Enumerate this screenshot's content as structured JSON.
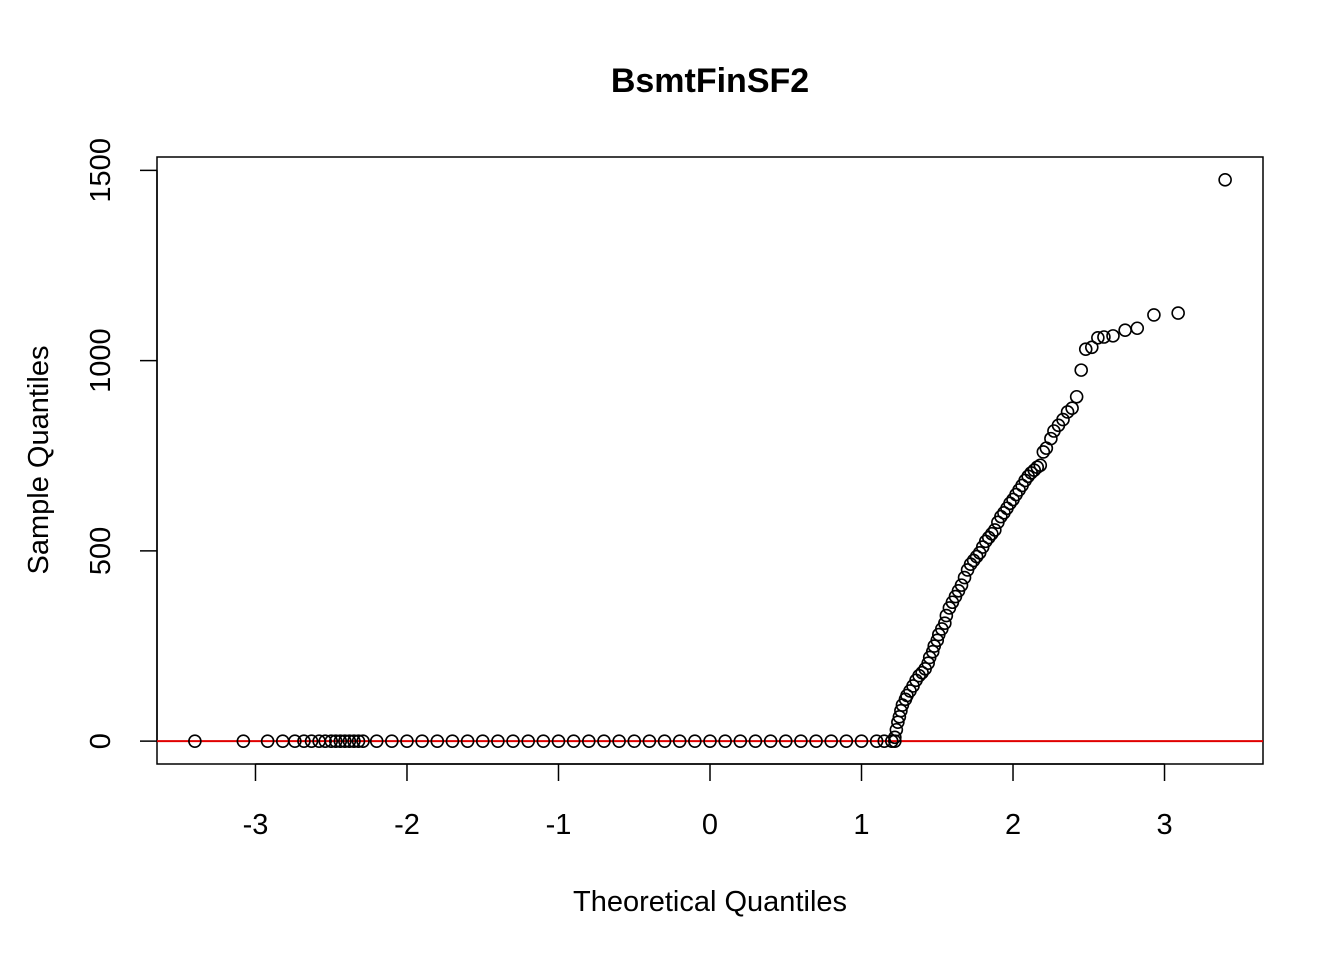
{
  "chart_data": {
    "type": "scatter",
    "title": "BsmtFinSF2",
    "xlabel": "Theoretical Quantiles",
    "ylabel": "Sample Quantiles",
    "xlim": [
      -3.65,
      3.65
    ],
    "ylim": [
      -60,
      1535
    ],
    "x_ticks": [
      -3,
      -2,
      -1,
      0,
      1,
      2,
      3
    ],
    "x_tick_labels": [
      "-3",
      "-2",
      "-1",
      "0",
      "1",
      "2",
      "3"
    ],
    "y_ticks": [
      0,
      500,
      1000,
      1500
    ],
    "y_tick_labels": [
      "0",
      "500",
      "1000",
      "1500"
    ],
    "grid": false,
    "reference_line": {
      "type": "hline",
      "y": 0,
      "color": "#e00000"
    },
    "point_color": "#000000",
    "series": [
      {
        "points": [
          [
            -3.4,
            0
          ],
          [
            -3.08,
            0
          ],
          [
            -2.92,
            0
          ],
          [
            -2.82,
            0
          ],
          [
            -2.74,
            0
          ],
          [
            -2.68,
            0
          ],
          [
            -2.63,
            0
          ],
          [
            -2.58,
            0
          ],
          [
            -2.54,
            0
          ],
          [
            -2.5,
            0
          ],
          [
            -2.47,
            0
          ],
          [
            -2.44,
            0
          ],
          [
            -2.41,
            0
          ],
          [
            -2.38,
            0
          ],
          [
            -2.35,
            0
          ],
          [
            -2.32,
            0
          ],
          [
            -2.29,
            0
          ],
          [
            -2.2,
            0
          ],
          [
            -2.1,
            0
          ],
          [
            -2.0,
            0
          ],
          [
            -1.9,
            0
          ],
          [
            -1.8,
            0
          ],
          [
            -1.7,
            0
          ],
          [
            -1.6,
            0
          ],
          [
            -1.5,
            0
          ],
          [
            -1.4,
            0
          ],
          [
            -1.3,
            0
          ],
          [
            -1.2,
            0
          ],
          [
            -1.1,
            0
          ],
          [
            -1.0,
            0
          ],
          [
            -0.9,
            0
          ],
          [
            -0.8,
            0
          ],
          [
            -0.7,
            0
          ],
          [
            -0.6,
            0
          ],
          [
            -0.5,
            0
          ],
          [
            -0.4,
            0
          ],
          [
            -0.3,
            0
          ],
          [
            -0.2,
            0
          ],
          [
            -0.1,
            0
          ],
          [
            0.0,
            0
          ],
          [
            0.1,
            0
          ],
          [
            0.2,
            0
          ],
          [
            0.3,
            0
          ],
          [
            0.4,
            0
          ],
          [
            0.5,
            0
          ],
          [
            0.6,
            0
          ],
          [
            0.7,
            0
          ],
          [
            0.8,
            0
          ],
          [
            0.9,
            0
          ],
          [
            1.0,
            0
          ],
          [
            1.1,
            0
          ],
          [
            1.15,
            0
          ],
          [
            1.2,
            0
          ],
          [
            1.22,
            0
          ],
          [
            1.22,
            10
          ],
          [
            1.23,
            30
          ],
          [
            1.24,
            50
          ],
          [
            1.25,
            64
          ],
          [
            1.26,
            80
          ],
          [
            1.27,
            95
          ],
          [
            1.29,
            110
          ],
          [
            1.3,
            120
          ],
          [
            1.32,
            132
          ],
          [
            1.34,
            145
          ],
          [
            1.36,
            160
          ],
          [
            1.38,
            172
          ],
          [
            1.4,
            180
          ],
          [
            1.42,
            190
          ],
          [
            1.44,
            205
          ],
          [
            1.45,
            220
          ],
          [
            1.47,
            235
          ],
          [
            1.48,
            250
          ],
          [
            1.5,
            265
          ],
          [
            1.51,
            280
          ],
          [
            1.53,
            295
          ],
          [
            1.55,
            310
          ],
          [
            1.56,
            330
          ],
          [
            1.58,
            350
          ],
          [
            1.6,
            365
          ],
          [
            1.62,
            380
          ],
          [
            1.64,
            395
          ],
          [
            1.66,
            410
          ],
          [
            1.68,
            430
          ],
          [
            1.7,
            450
          ],
          [
            1.72,
            465
          ],
          [
            1.74,
            475
          ],
          [
            1.76,
            485
          ],
          [
            1.78,
            495
          ],
          [
            1.8,
            510
          ],
          [
            1.82,
            525
          ],
          [
            1.84,
            535
          ],
          [
            1.86,
            545
          ],
          [
            1.88,
            555
          ],
          [
            1.9,
            575
          ],
          [
            1.92,
            590
          ],
          [
            1.94,
            600
          ],
          [
            1.96,
            612
          ],
          [
            1.98,
            625
          ],
          [
            2.0,
            635
          ],
          [
            2.02,
            648
          ],
          [
            2.04,
            660
          ],
          [
            2.06,
            672
          ],
          [
            2.08,
            685
          ],
          [
            2.1,
            696
          ],
          [
            2.12,
            705
          ],
          [
            2.14,
            712
          ],
          [
            2.16,
            720
          ],
          [
            2.18,
            725
          ],
          [
            2.2,
            760
          ],
          [
            2.22,
            770
          ],
          [
            2.25,
            795
          ],
          [
            2.27,
            815
          ],
          [
            2.3,
            830
          ],
          [
            2.33,
            845
          ],
          [
            2.36,
            865
          ],
          [
            2.39,
            875
          ],
          [
            2.42,
            905
          ],
          [
            2.45,
            975
          ],
          [
            2.48,
            1030
          ],
          [
            2.52,
            1035
          ],
          [
            2.56,
            1060
          ],
          [
            2.6,
            1062
          ],
          [
            2.66,
            1065
          ],
          [
            2.74,
            1080
          ],
          [
            2.82,
            1085
          ],
          [
            2.93,
            1120
          ],
          [
            3.09,
            1125
          ],
          [
            3.4,
            1475
          ]
        ]
      }
    ]
  }
}
